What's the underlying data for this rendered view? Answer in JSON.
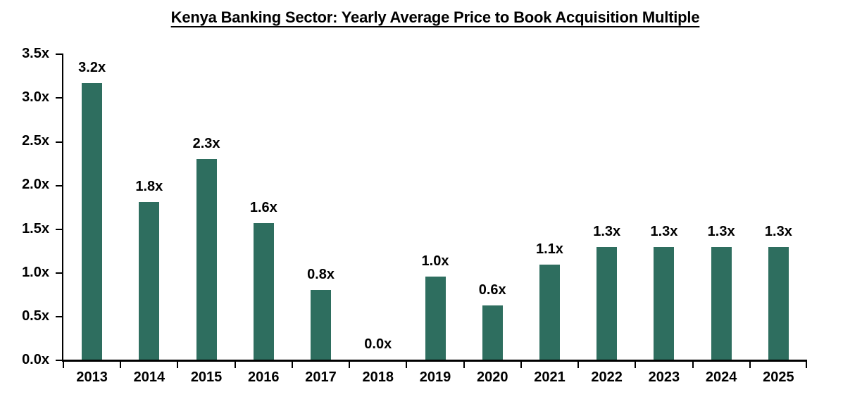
{
  "page": {
    "background": "#FFFFFF"
  },
  "chart_data": {
    "type": "bar",
    "title": "Kenya Banking Sector: Yearly Average Price to Book Acquisition Multiple",
    "categories": [
      "2013",
      "2014",
      "2015",
      "2016",
      "2017",
      "2018",
      "2019",
      "2020",
      "2021",
      "2022",
      "2023",
      "2024",
      "2025"
    ],
    "values": [
      3.2,
      1.8,
      2.3,
      1.6,
      0.8,
      0.0,
      1.0,
      0.6,
      1.1,
      1.3,
      1.3,
      1.3,
      1.3
    ],
    "data_labels": [
      "3.2x",
      "1.8x",
      "2.3x",
      "1.6x",
      "0.8x",
      "0.0x",
      "1.0x",
      "0.6x",
      "1.1x",
      "1.3x",
      "1.3x",
      "1.3x",
      "1.3x"
    ],
    "values_rendered": [
      3.16,
      1.8,
      2.29,
      1.56,
      0.8,
      0,
      0.95,
      0.62,
      1.09,
      1.29,
      1.29,
      1.29,
      1.29
    ],
    "y_ticks": [
      {
        "label": "0.0x",
        "value": 0
      },
      {
        "label": "0.5x",
        "value": 0.5
      },
      {
        "label": "1.0x",
        "value": 1
      },
      {
        "label": "1.5x",
        "value": 1.5
      },
      {
        "label": "2.0x",
        "value": 2
      },
      {
        "label": "2.5x",
        "value": 2.5
      },
      {
        "label": "3.0x",
        "value": 3
      },
      {
        "label": "3.5x",
        "value": 3.5
      }
    ],
    "ylim": [
      0,
      3.5
    ],
    "xlabel": "",
    "ylabel": "",
    "grid": false,
    "legend": false,
    "bar_color": "#2E6E5F",
    "axis_color": "#000000",
    "text_color": "#000000"
  }
}
